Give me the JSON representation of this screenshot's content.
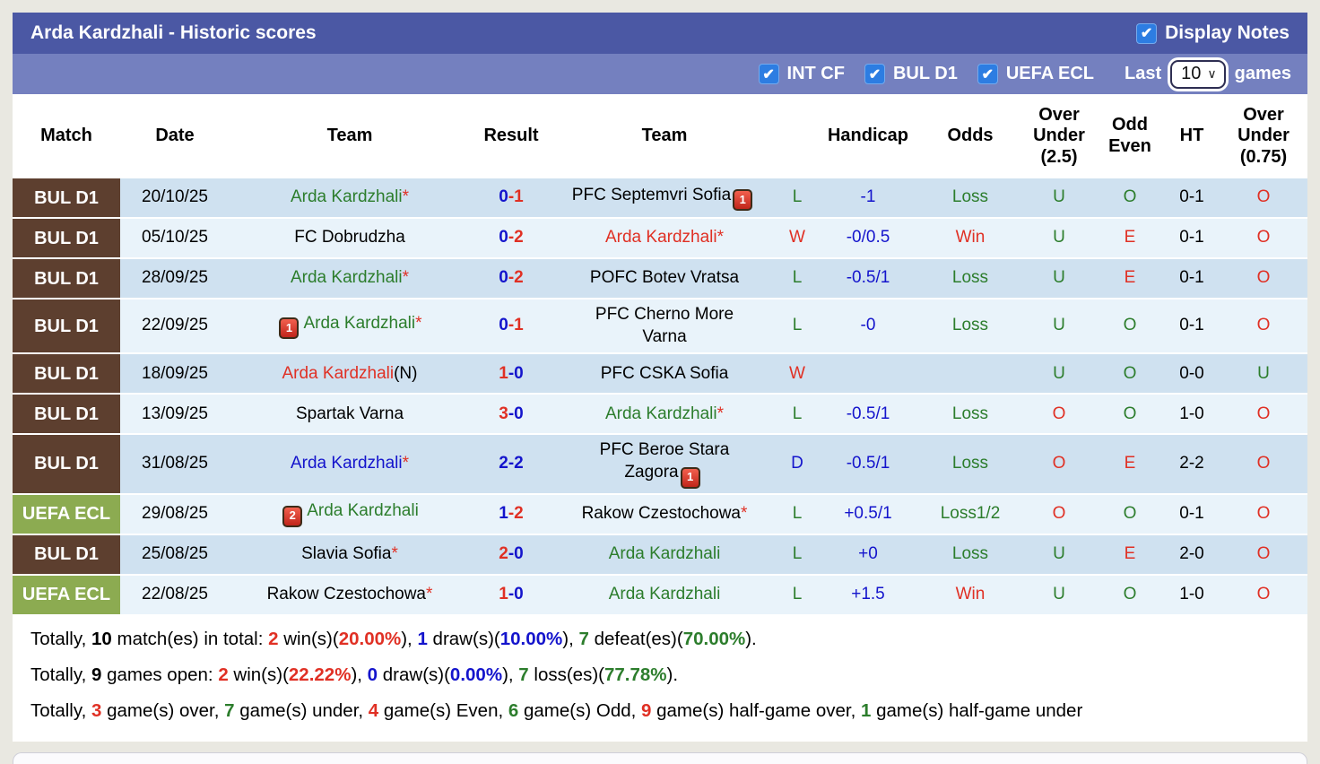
{
  "header": {
    "title": "Arda Kardzhali - Historic scores",
    "display_notes_label": "Display Notes",
    "display_notes_checked": true
  },
  "filters": {
    "competitions": [
      {
        "label": "INT CF",
        "checked": true
      },
      {
        "label": "BUL D1",
        "checked": true
      },
      {
        "label": "UEFA ECL",
        "checked": true
      }
    ],
    "last_label": "Last",
    "select_value": "10",
    "games_label": "games"
  },
  "colors": {
    "title_bar": "#4b58a4",
    "filter_bar": "#7480bf",
    "checkbox_blue": "#2d7de2",
    "badge_bul": "#5d3f2f",
    "badge_uefa": "#8cab51",
    "row_dark": "#cfe1f0",
    "row_light": "#e9f3fa",
    "win_red": "#e03024",
    "loss_green": "#2c7d2c",
    "draw_blue": "#1414cc"
  },
  "table": {
    "headers": [
      "Match",
      "Date",
      "Team",
      "Result",
      "Team",
      "",
      "Handicap",
      "Odds",
      "Over Under (2.5)",
      "Odd Even",
      "HT",
      "Over Under (0.75)"
    ],
    "rows": [
      {
        "league": "BUL D1",
        "lc": "bul",
        "date": "20/10/25",
        "home": {
          "name": "Arda Kardzhali",
          "color": "green",
          "star": true
        },
        "score": {
          "h": "0",
          "a": "1",
          "hc": "blue",
          "ac": "red"
        },
        "away": {
          "name": "PFC Septemvri Sofia",
          "color": "black",
          "card": {
            "count": "1",
            "pos": "after"
          }
        },
        "wld": {
          "t": "L",
          "c": "green"
        },
        "handicap": "-1",
        "odds": {
          "t": "Loss",
          "c": "green"
        },
        "ou25": {
          "t": "U",
          "c": "green"
        },
        "oe": {
          "t": "O",
          "c": "green"
        },
        "ht": "0-1",
        "ou075": {
          "t": "O",
          "c": "red"
        }
      },
      {
        "league": "BUL D1",
        "lc": "bul",
        "date": "05/10/25",
        "home": {
          "name": "FC Dobrudzha",
          "color": "black"
        },
        "score": {
          "h": "0",
          "a": "2",
          "hc": "blue",
          "ac": "red"
        },
        "away": {
          "name": "Arda Kardzhali",
          "color": "red",
          "star": true
        },
        "wld": {
          "t": "W",
          "c": "red"
        },
        "handicap": "-0/0.5",
        "odds": {
          "t": "Win",
          "c": "red"
        },
        "ou25": {
          "t": "U",
          "c": "green"
        },
        "oe": {
          "t": "E",
          "c": "red"
        },
        "ht": "0-1",
        "ou075": {
          "t": "O",
          "c": "red"
        }
      },
      {
        "league": "BUL D1",
        "lc": "bul",
        "date": "28/09/25",
        "home": {
          "name": "Arda Kardzhali",
          "color": "green",
          "star": true
        },
        "score": {
          "h": "0",
          "a": "2",
          "hc": "blue",
          "ac": "red"
        },
        "away": {
          "name": "POFC Botev Vratsa",
          "color": "black"
        },
        "wld": {
          "t": "L",
          "c": "green"
        },
        "handicap": "-0.5/1",
        "odds": {
          "t": "Loss",
          "c": "green"
        },
        "ou25": {
          "t": "U",
          "c": "green"
        },
        "oe": {
          "t": "E",
          "c": "red"
        },
        "ht": "0-1",
        "ou075": {
          "t": "O",
          "c": "red"
        }
      },
      {
        "league": "BUL D1",
        "lc": "bul",
        "date": "22/09/25",
        "home": {
          "name": "Arda Kardzhali",
          "color": "green",
          "star": true,
          "card": {
            "count": "1",
            "pos": "before"
          }
        },
        "score": {
          "h": "0",
          "a": "1",
          "hc": "blue",
          "ac": "red"
        },
        "away": {
          "name": "PFC Cherno More\nVarna",
          "color": "black"
        },
        "wld": {
          "t": "L",
          "c": "green"
        },
        "handicap": "-0",
        "odds": {
          "t": "Loss",
          "c": "green"
        },
        "ou25": {
          "t": "U",
          "c": "green"
        },
        "oe": {
          "t": "O",
          "c": "green"
        },
        "ht": "0-1",
        "ou075": {
          "t": "O",
          "c": "red"
        }
      },
      {
        "league": "BUL D1",
        "lc": "bul",
        "date": "18/09/25",
        "home": {
          "name": "Arda Kardzhali",
          "color": "red",
          "suffix": "(N)"
        },
        "score": {
          "h": "1",
          "a": "0",
          "hc": "red",
          "ac": "blue"
        },
        "away": {
          "name": "PFC CSKA Sofia",
          "color": "black"
        },
        "wld": {
          "t": "W",
          "c": "red"
        },
        "handicap": "",
        "odds": {
          "t": "",
          "c": "green"
        },
        "ou25": {
          "t": "U",
          "c": "green"
        },
        "oe": {
          "t": "O",
          "c": "green"
        },
        "ht": "0-0",
        "ou075": {
          "t": "U",
          "c": "green"
        }
      },
      {
        "league": "BUL D1",
        "lc": "bul",
        "date": "13/09/25",
        "home": {
          "name": "Spartak Varna",
          "color": "black"
        },
        "score": {
          "h": "3",
          "a": "0",
          "hc": "red",
          "ac": "blue"
        },
        "away": {
          "name": "Arda Kardzhali",
          "color": "green",
          "star": true
        },
        "wld": {
          "t": "L",
          "c": "green"
        },
        "handicap": "-0.5/1",
        "odds": {
          "t": "Loss",
          "c": "green"
        },
        "ou25": {
          "t": "O",
          "c": "red"
        },
        "oe": {
          "t": "O",
          "c": "green"
        },
        "ht": "1-0",
        "ou075": {
          "t": "O",
          "c": "red"
        }
      },
      {
        "league": "BUL D1",
        "lc": "bul",
        "date": "31/08/25",
        "home": {
          "name": "Arda Kardzhali",
          "color": "blue",
          "star": true
        },
        "score": {
          "h": "2",
          "a": "2",
          "hc": "blue",
          "ac": "blue"
        },
        "away": {
          "name": "PFC Beroe Stara\nZagora",
          "color": "black",
          "card": {
            "count": "1",
            "pos": "after"
          }
        },
        "wld": {
          "t": "D",
          "c": "blue"
        },
        "handicap": "-0.5/1",
        "odds": {
          "t": "Loss",
          "c": "green"
        },
        "ou25": {
          "t": "O",
          "c": "red"
        },
        "oe": {
          "t": "E",
          "c": "red"
        },
        "ht": "2-2",
        "ou075": {
          "t": "O",
          "c": "red"
        }
      },
      {
        "league": "UEFA ECL",
        "lc": "uefa",
        "date": "29/08/25",
        "home": {
          "name": "Arda Kardzhali",
          "color": "green",
          "card": {
            "count": "2",
            "pos": "before"
          }
        },
        "score": {
          "h": "1",
          "a": "2",
          "hc": "blue",
          "ac": "red"
        },
        "away": {
          "name": "Rakow Czestochowa",
          "color": "black",
          "star": true
        },
        "wld": {
          "t": "L",
          "c": "green"
        },
        "handicap": "+0.5/1",
        "odds": {
          "t": "Loss1/2",
          "c": "green"
        },
        "ou25": {
          "t": "O",
          "c": "red"
        },
        "oe": {
          "t": "O",
          "c": "green"
        },
        "ht": "0-1",
        "ou075": {
          "t": "O",
          "c": "red"
        }
      },
      {
        "league": "BUL D1",
        "lc": "bul",
        "date": "25/08/25",
        "home": {
          "name": "Slavia Sofia",
          "color": "black",
          "star": true
        },
        "score": {
          "h": "2",
          "a": "0",
          "hc": "red",
          "ac": "blue"
        },
        "away": {
          "name": "Arda Kardzhali",
          "color": "green"
        },
        "wld": {
          "t": "L",
          "c": "green"
        },
        "handicap": "+0",
        "odds": {
          "t": "Loss",
          "c": "green"
        },
        "ou25": {
          "t": "U",
          "c": "green"
        },
        "oe": {
          "t": "E",
          "c": "red"
        },
        "ht": "2-0",
        "ou075": {
          "t": "O",
          "c": "red"
        }
      },
      {
        "league": "UEFA ECL",
        "lc": "uefa",
        "date": "22/08/25",
        "home": {
          "name": "Rakow Czestochowa",
          "color": "black",
          "star": true
        },
        "score": {
          "h": "1",
          "a": "0",
          "hc": "red",
          "ac": "blue"
        },
        "away": {
          "name": "Arda Kardzhali",
          "color": "green"
        },
        "wld": {
          "t": "L",
          "c": "green"
        },
        "handicap": "+1.5",
        "odds": {
          "t": "Win",
          "c": "red"
        },
        "ou25": {
          "t": "U",
          "c": "green"
        },
        "oe": {
          "t": "O",
          "c": "green"
        },
        "ht": "1-0",
        "ou075": {
          "t": "O",
          "c": "red"
        }
      }
    ]
  },
  "summary": {
    "lines": [
      [
        {
          "t": "Totally, "
        },
        {
          "t": "10",
          "b": 1
        },
        {
          "t": " match(es) in total: "
        },
        {
          "t": "2",
          "b": 1,
          "c": "red"
        },
        {
          "t": " win(s)("
        },
        {
          "t": "20.00%",
          "b": 1,
          "c": "red"
        },
        {
          "t": "), "
        },
        {
          "t": "1",
          "b": 1,
          "c": "blue"
        },
        {
          "t": " draw(s)("
        },
        {
          "t": "10.00%",
          "b": 1,
          "c": "blue"
        },
        {
          "t": "), "
        },
        {
          "t": "7",
          "b": 1,
          "c": "green"
        },
        {
          "t": " defeat(es)("
        },
        {
          "t": "70.00%",
          "b": 1,
          "c": "green"
        },
        {
          "t": ")."
        }
      ],
      [
        {
          "t": "Totally, "
        },
        {
          "t": "9",
          "b": 1
        },
        {
          "t": " games open: "
        },
        {
          "t": "2",
          "b": 1,
          "c": "red"
        },
        {
          "t": " win(s)("
        },
        {
          "t": "22.22%",
          "b": 1,
          "c": "red"
        },
        {
          "t": "), "
        },
        {
          "t": "0",
          "b": 1,
          "c": "blue"
        },
        {
          "t": " draw(s)("
        },
        {
          "t": "0.00%",
          "b": 1,
          "c": "blue"
        },
        {
          "t": "), "
        },
        {
          "t": "7",
          "b": 1,
          "c": "green"
        },
        {
          "t": " loss(es)("
        },
        {
          "t": "77.78%",
          "b": 1,
          "c": "green"
        },
        {
          "t": ")."
        }
      ],
      [
        {
          "t": "Totally, "
        },
        {
          "t": "3",
          "b": 1,
          "c": "red"
        },
        {
          "t": " game(s) over, "
        },
        {
          "t": "7",
          "b": 1,
          "c": "green"
        },
        {
          "t": " game(s) under, "
        },
        {
          "t": "4",
          "b": 1,
          "c": "red"
        },
        {
          "t": " game(s) Even, "
        },
        {
          "t": "6",
          "b": 1,
          "c": "green"
        },
        {
          "t": " game(s) Odd, "
        },
        {
          "t": "9",
          "b": 1,
          "c": "red"
        },
        {
          "t": " game(s) half-game over, "
        },
        {
          "t": "1",
          "b": 1,
          "c": "green"
        },
        {
          "t": " game(s) half-game under"
        }
      ]
    ]
  }
}
